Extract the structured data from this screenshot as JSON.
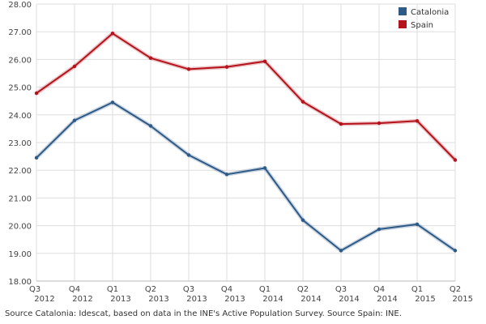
{
  "chart_data": {
    "type": "line",
    "categories": [
      [
        "Q3",
        "2012"
      ],
      [
        "Q4",
        "2012"
      ],
      [
        "Q1",
        "2013"
      ],
      [
        "Q2",
        "2013"
      ],
      [
        "Q3",
        "2013"
      ],
      [
        "Q4",
        "2013"
      ],
      [
        "Q1",
        "2014"
      ],
      [
        "Q2",
        "2014"
      ],
      [
        "Q3",
        "2014"
      ],
      [
        "Q4",
        "2014"
      ],
      [
        "Q1",
        "2015"
      ],
      [
        "Q2",
        "2015"
      ]
    ],
    "series": [
      {
        "name": "Catalonia",
        "color": "#2e5a87",
        "values": [
          22.45,
          23.8,
          24.45,
          23.6,
          22.55,
          21.85,
          22.08,
          20.2,
          19.1,
          19.87,
          20.05,
          19.1
        ]
      },
      {
        "name": "Spain",
        "color": "#b5121b",
        "values": [
          24.78,
          25.75,
          26.94,
          26.05,
          25.65,
          25.73,
          25.93,
          24.47,
          23.67,
          23.7,
          23.78,
          22.37
        ]
      }
    ],
    "ylim": [
      18,
      28
    ],
    "yticks": [
      "18.00",
      "19.00",
      "20.00",
      "21.00",
      "22.00",
      "23.00",
      "24.00",
      "25.00",
      "26.00",
      "27.00",
      "28.00"
    ],
    "grid": true,
    "legend_position": "top-right"
  },
  "source_note": "Source Catalonia: Idescat, based on data in the INE's Active Population Survey. Source Spain: INE."
}
